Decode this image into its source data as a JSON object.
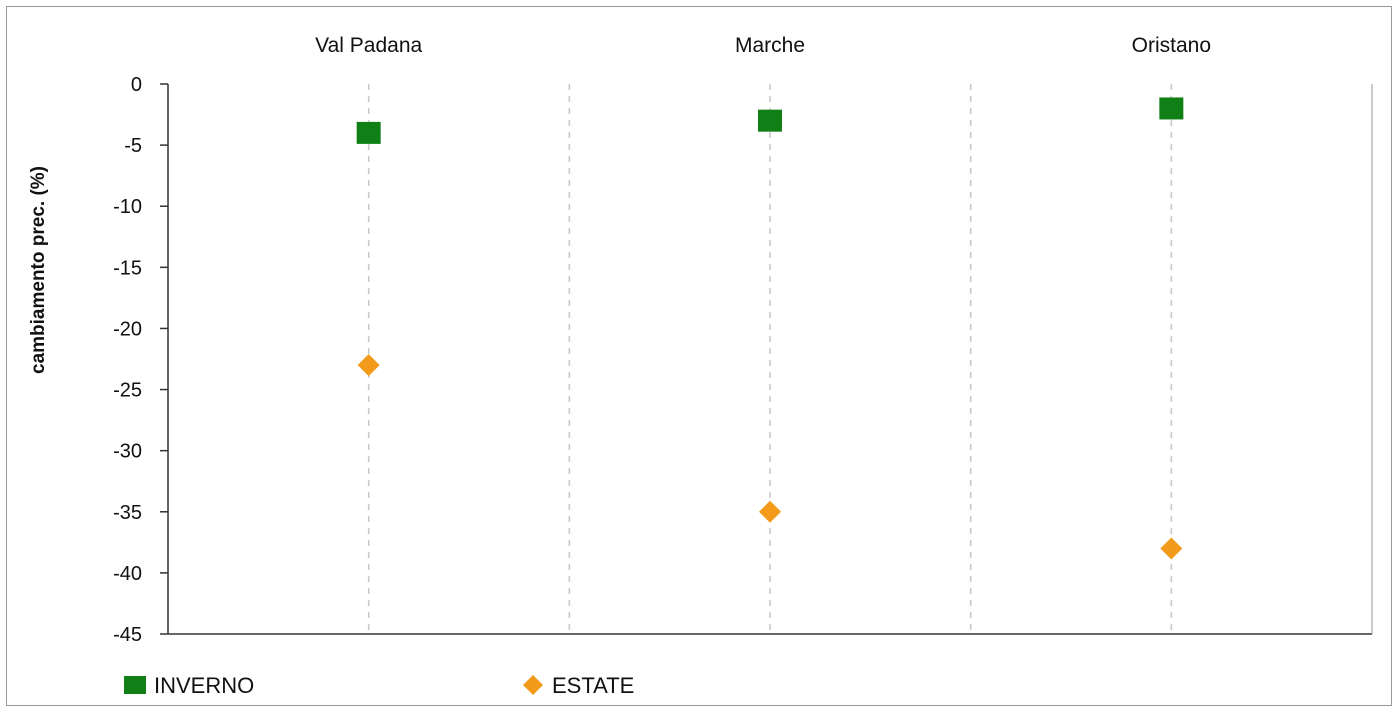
{
  "chart_data": {
    "type": "scatter",
    "categories": [
      "Val Padana",
      "Marche",
      "Oristano"
    ],
    "series": [
      {
        "name": "INVERNO",
        "values": [
          -4,
          -3,
          -2
        ],
        "color": "#0f7f16",
        "marker": "square"
      },
      {
        "name": "ESTATE",
        "values": [
          -23,
          -35,
          -38
        ],
        "color": "#f39a1a",
        "marker": "diamond"
      }
    ],
    "ylabel": "cambiamento prec. (%)",
    "ylim": [
      -45,
      0
    ],
    "yticks": [
      0,
      -5,
      -10,
      -15,
      -20,
      -25,
      -30,
      -35,
      -40,
      -45
    ],
    "category_gridlines": "dashed",
    "legend_position": "bottom"
  }
}
